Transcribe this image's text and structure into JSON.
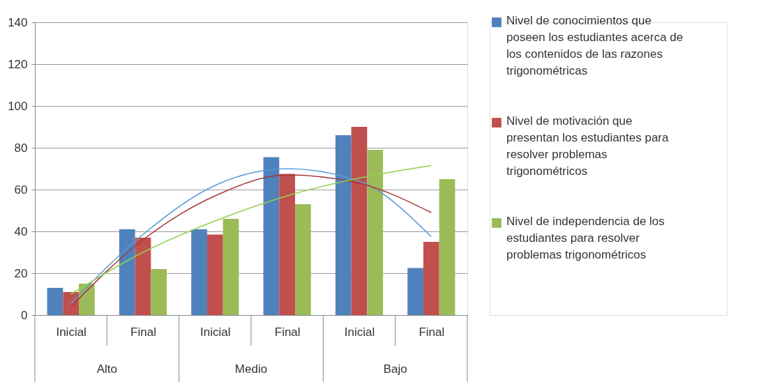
{
  "chart_data": {
    "type": "bar",
    "categories": [
      "Inicial",
      "Final",
      "Inicial",
      "Final",
      "Inicial",
      "Final"
    ],
    "series": [
      {
        "name": "Nivel de conocimientos que poseen los estudiantes acerca de los contenidos de las razones trigonométricas",
        "color": "#4f81bd",
        "values": [
          13,
          41,
          41,
          75.5,
          86,
          22.5
        ]
      },
      {
        "name": "Nivel de motivación que presentan los estudiantes para resolver problemas trigonométricos",
        "color": "#c0504d",
        "values": [
          11,
          37,
          38.5,
          67.5,
          90,
          35
        ]
      },
      {
        "name": "Nivel de independencia de los estudiantes para resolver problemas trigonométricos",
        "color": "#9bbb59",
        "values": [
          15,
          22,
          46,
          53,
          79,
          65
        ]
      },
      {
        "type": "line",
        "color": "#5b9bd5",
        "values": [
          5.5,
          38.5,
          62,
          70,
          64,
          37.5
        ]
      },
      {
        "type": "line",
        "color": "#a83a3a",
        "values": [
          4,
          36,
          57,
          67,
          63,
          49
        ]
      },
      {
        "type": "line",
        "color": "#92d050",
        "values": [
          10,
          30,
          45,
          57,
          65.5,
          71.5
        ]
      }
    ],
    "annotations": [
      "Alto",
      "Medio",
      "Bajo"
    ],
    "ylim": [
      0,
      140
    ],
    "yticks": [
      0,
      20,
      40,
      60,
      80,
      100,
      120,
      140
    ],
    "grid": "y",
    "legend": "right"
  }
}
